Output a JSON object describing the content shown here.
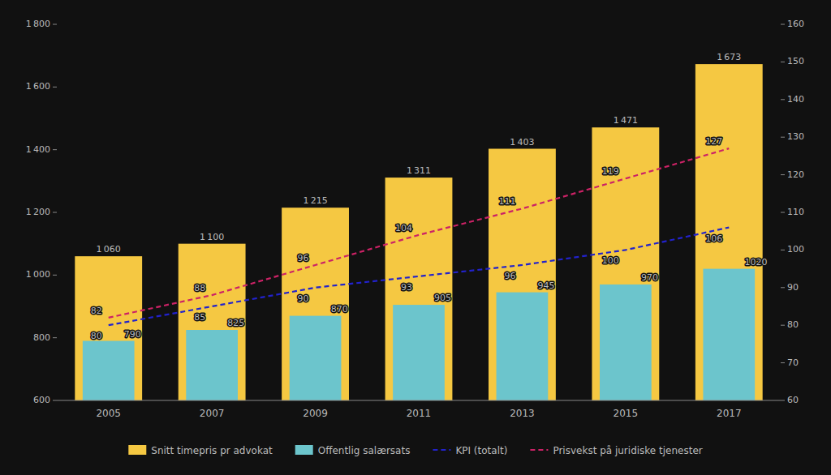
{
  "chart_data": {
    "type": "bar",
    "categories": [
      2005,
      2007,
      2009,
      2011,
      2013,
      2015,
      2017
    ],
    "series": [
      {
        "name": "Snitt timepris pr advokat",
        "type": "bar",
        "color": "#F5C842",
        "values": [
          1060,
          1100,
          1215,
          1311,
          1403,
          1471,
          1673
        ],
        "value_labels": [
          "1 060",
          "1 100",
          "1 215",
          "1 311",
          "1 403",
          "1 471",
          "1 673"
        ]
      },
      {
        "name": "Offentlig salærsats",
        "type": "bar",
        "color": "#6CC5CC",
        "values": [
          790,
          825,
          870,
          905,
          945,
          970,
          1020
        ]
      },
      {
        "name": "KPI (totalt)",
        "type": "line",
        "axis": "y2",
        "color": "#2222CC",
        "line_style": "dashed",
        "values": [
          80,
          85,
          90,
          93,
          96,
          100,
          106
        ]
      },
      {
        "name": "Prisvekst på juridiske tjenester",
        "type": "line",
        "axis": "y2",
        "color": "#CC2266",
        "line_style": "dashed",
        "values": [
          82,
          88,
          96,
          104,
          111,
          119,
          127
        ]
      }
    ],
    "ylim": [
      600,
      1800
    ],
    "yticks": [
      600,
      800,
      {
        "value": 1000,
        "label": "1 000"
      },
      {
        "value": 1200,
        "label": "1 200"
      },
      {
        "value": 1400,
        "label": "1 400"
      },
      {
        "value": 1600,
        "label": "1 600"
      },
      {
        "value": 1800,
        "label": "1 800"
      }
    ],
    "y2lim": [
      60,
      160
    ],
    "y2ticks": [
      60,
      70,
      80,
      90,
      100,
      110,
      120,
      130,
      140,
      150,
      160
    ],
    "data_labels": true,
    "grid": false,
    "legend": "bottom"
  }
}
